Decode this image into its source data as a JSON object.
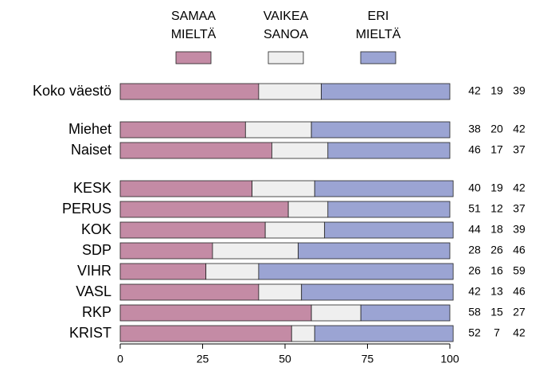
{
  "chart_data": {
    "type": "stacked-barh",
    "categories": [
      "Koko väestö",
      "Miehet",
      "Naiset",
      "KESK",
      "PERUS",
      "KOK",
      "SDP",
      "VIHR",
      "VASL",
      "RKP",
      "KRIST"
    ],
    "series": [
      {
        "name": "SAMAA MIELTÄ",
        "color": "#c48ba5",
        "values": [
          42,
          38,
          46,
          40,
          51,
          44,
          28,
          26,
          42,
          58,
          52
        ]
      },
      {
        "name": "VAIKEA SANOA",
        "color": "#efefef",
        "values": [
          19,
          20,
          17,
          19,
          12,
          18,
          26,
          16,
          13,
          15,
          7
        ]
      },
      {
        "name": "ERI MIELTÄ",
        "color": "#9ba4d3",
        "values": [
          39,
          42,
          37,
          42,
          37,
          39,
          46,
          59,
          46,
          27,
          42
        ]
      }
    ],
    "xlim": [
      0,
      100
    ],
    "xticks": [
      0,
      25,
      50,
      75,
      100
    ],
    "legend": "top"
  }
}
